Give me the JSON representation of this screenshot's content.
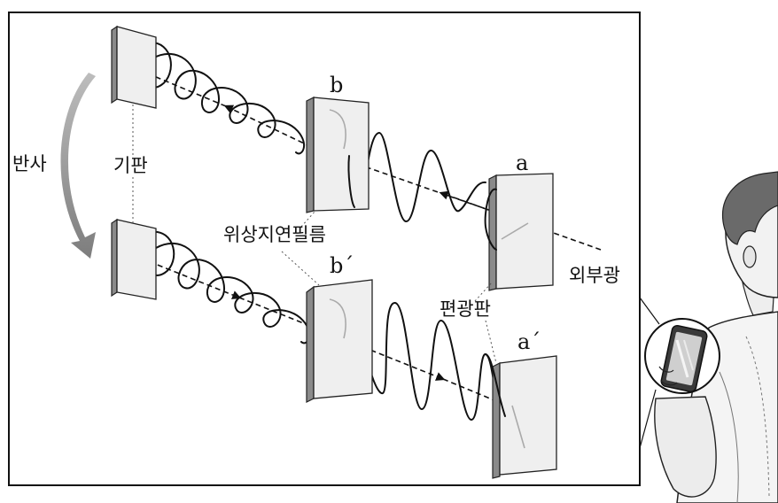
{
  "labels": {
    "plate_a": "a",
    "plate_b": "b",
    "plate_b_prime": "b´",
    "plate_a_prime": "a´",
    "reflection": "반사",
    "substrate": "기판",
    "phase_retarder_film": "위상지연필름",
    "polarizer": "편광판",
    "external_light": "외부광"
  },
  "colors": {
    "frame": "#111111",
    "reflection_arrow": "#9a9a9a",
    "plate_side": "#8a8a8a",
    "plate_front": "#efefef"
  }
}
